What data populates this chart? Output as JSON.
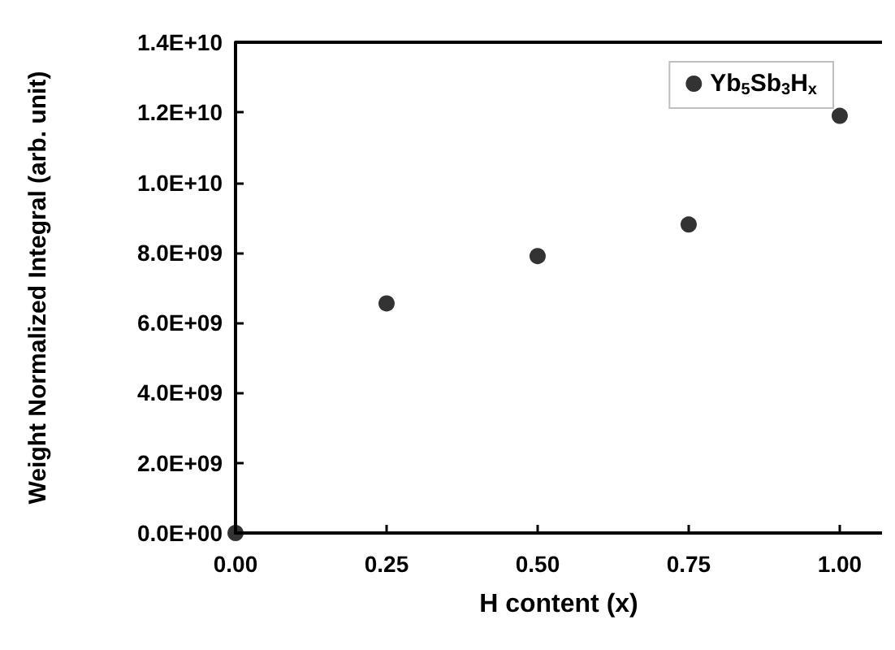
{
  "chart_data": {
    "type": "scatter",
    "xlabel": "H content (x)",
    "ylabel": "Weight Normalized Integral (arb. unit)",
    "x": [
      0,
      0.25,
      0.5,
      0.75,
      1.0
    ],
    "series": [
      {
        "name": "Yb$_{5}$Sb$_{3}$H$_{x}$",
        "color": "#000000",
        "values": [
          0,
          6550000000.0,
          7900000000.0,
          8800000000.0,
          11900000000.0
        ]
      }
    ],
    "xlim": [
      0,
      1.07
    ],
    "xticks": [
      {
        "value": 0,
        "label": "0.00"
      },
      0.25,
      {
        "value": 0.5,
        "label": "0.50"
      },
      0.75,
      {
        "value": 1,
        "label": "1.00"
      }
    ],
    "ylim": [
      0,
      14000000000.0
    ],
    "yticks": [
      {
        "value": 0,
        "label": "0.0E+00"
      },
      {
        "value": 2000000000.0,
        "label": "2.0E+09"
      },
      {
        "value": 4000000000.0,
        "label": "4.0E+09"
      },
      {
        "value": 6000000000.0,
        "label": "6.0E+09"
      },
      {
        "value": 8000000000.0,
        "label": "8.0E+09"
      },
      {
        "value": 10000000000.0,
        "label": "1.0E+10"
      },
      {
        "value": 12000000000.0,
        "label": "1.2E+10"
      },
      {
        "value": 14000000000.0,
        "label": "1.4E+10"
      }
    ],
    "grid": false,
    "legend": "top right",
    "marker": "circle"
  }
}
